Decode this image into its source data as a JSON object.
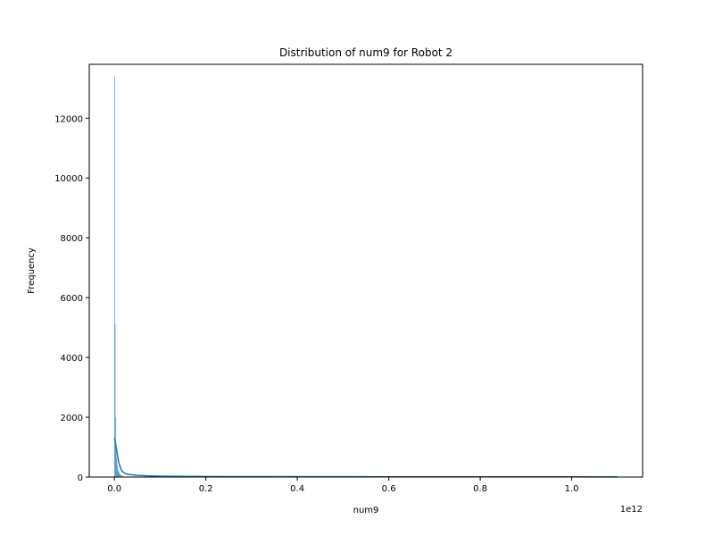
{
  "chart_data": {
    "type": "histogram",
    "title": "Distribution of num9 for Robot 2",
    "xlabel": "num9",
    "ylabel": "Frequency",
    "x_offset_label": "1e12",
    "x_scale": 1000000000000.0,
    "xlim": [
      -0.055,
      1.155
    ],
    "ylim": [
      0,
      13800
    ],
    "x_ticks": [
      0.0,
      0.2,
      0.4,
      0.6,
      0.8,
      1.0
    ],
    "x_tick_labels": [
      "0.0",
      "0.2",
      "0.4",
      "0.6",
      "0.8",
      "1.0"
    ],
    "y_ticks": [
      0,
      2000,
      4000,
      6000,
      8000,
      10000,
      12000
    ],
    "y_tick_labels": [
      "0",
      "2000",
      "4000",
      "6000",
      "8000",
      "10000",
      "12000"
    ],
    "bar_color": "#1f77b4",
    "kde_color": "#1f77b4",
    "bars": [
      {
        "x_start": 0.0,
        "x_end": 0.0011,
        "count": 13400
      },
      {
        "x_start": 0.0011,
        "x_end": 0.0022,
        "count": 5100
      },
      {
        "x_start": 0.0022,
        "x_end": 0.0033,
        "count": 2000
      },
      {
        "x_start": 0.0033,
        "x_end": 0.0044,
        "count": 1000
      },
      {
        "x_start": 0.0044,
        "x_end": 0.0055,
        "count": 600
      },
      {
        "x_start": 0.0055,
        "x_end": 0.0066,
        "count": 400
      },
      {
        "x_start": 0.0066,
        "x_end": 0.0077,
        "count": 300
      },
      {
        "x_start": 0.0077,
        "x_end": 0.0088,
        "count": 220
      },
      {
        "x_start": 0.0088,
        "x_end": 0.0099,
        "count": 170
      },
      {
        "x_start": 0.0099,
        "x_end": 0.011,
        "count": 130
      },
      {
        "x_start": 0.011,
        "x_end": 0.0121,
        "count": 100
      },
      {
        "x_start": 0.0121,
        "x_end": 0.0132,
        "count": 80
      },
      {
        "x_start": 0.0132,
        "x_end": 0.0143,
        "count": 65
      },
      {
        "x_start": 0.0143,
        "x_end": 0.0154,
        "count": 50
      },
      {
        "x_start": 0.0154,
        "x_end": 0.0165,
        "count": 40
      },
      {
        "x_start": 0.0165,
        "x_end": 0.0176,
        "count": 30
      },
      {
        "x_start": 0.0176,
        "x_end": 0.0187,
        "count": 22
      }
    ],
    "kde": {
      "x": [
        0.0,
        0.002,
        0.004,
        0.006,
        0.008,
        0.01,
        0.013,
        0.016,
        0.02,
        0.025,
        0.03,
        0.04,
        0.05,
        0.07,
        0.1,
        0.15,
        0.2,
        0.3,
        0.4,
        0.5,
        0.6,
        0.7,
        0.8,
        0.9,
        1.0,
        1.1
      ],
      "y": [
        1300,
        1180,
        1000,
        800,
        610,
        460,
        320,
        220,
        150,
        110,
        90,
        70,
        55,
        40,
        30,
        22,
        18,
        14,
        12,
        10,
        9,
        8,
        7,
        6,
        6,
        5
      ]
    }
  }
}
